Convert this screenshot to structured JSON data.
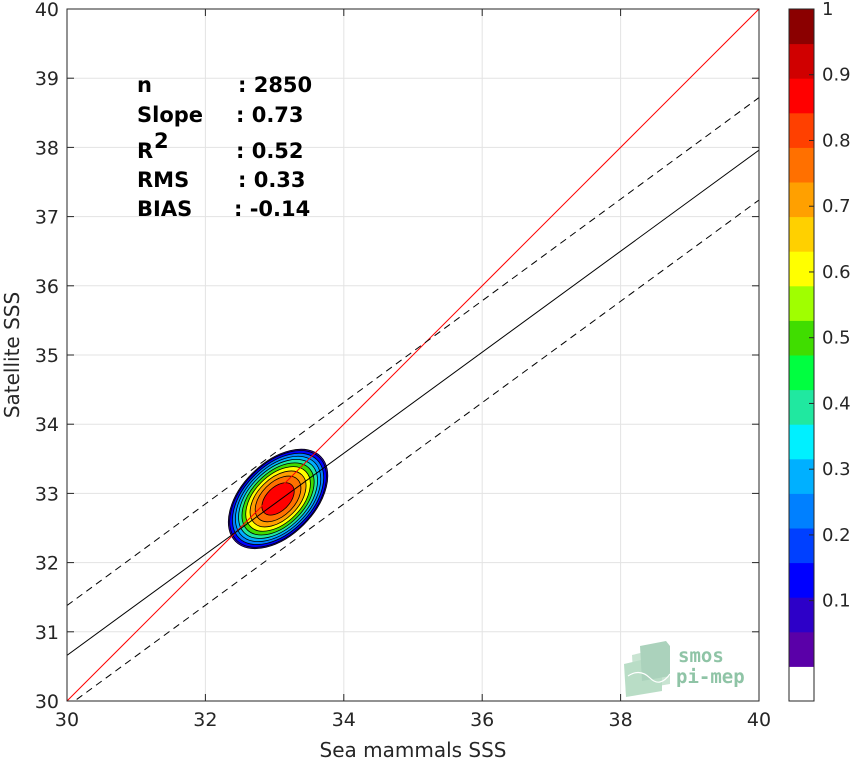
{
  "chart_data": {
    "type": "scatter",
    "subtype": "density-contour",
    "xlabel": "Sea mammals SSS",
    "ylabel": "Satellite SSS",
    "xlim": [
      30,
      40
    ],
    "ylim": [
      30,
      40
    ],
    "x_ticks": [
      "30",
      "32",
      "34",
      "36",
      "38",
      "40"
    ],
    "y_ticks": [
      "30",
      "31",
      "32",
      "33",
      "34",
      "35",
      "36",
      "37",
      "38",
      "39",
      "40"
    ],
    "grid": true,
    "stats": [
      {
        "key": "n",
        "sep": ": 2850"
      },
      {
        "key": "Slope",
        "sep": ": 0.73"
      },
      {
        "key": "R",
        "sup": "2",
        "sep": ": 0.52"
      },
      {
        "key": "RMS",
        "sep": ": 0.33"
      },
      {
        "key": "BIAS",
        "sep": ": -0.14"
      }
    ],
    "lines": [
      {
        "name": "identity",
        "color": "#ff0000",
        "style": "solid",
        "slope": 1,
        "intercept": 0
      },
      {
        "name": "regression",
        "color": "#000000",
        "style": "solid",
        "points": [
          [
            30,
            30.66
          ],
          [
            40,
            37.96
          ]
        ]
      },
      {
        "name": "regression-upper",
        "color": "#000000",
        "style": "dashed",
        "points": [
          [
            30,
            31.38
          ],
          [
            40,
            38.72
          ]
        ]
      },
      {
        "name": "regression-lower",
        "color": "#000000",
        "style": "dashed",
        "points": [
          [
            30,
            29.92
          ],
          [
            40,
            37.24
          ]
        ]
      }
    ],
    "density": {
      "center": [
        33.05,
        32.92
      ],
      "outer_rx": 0.85,
      "outer_ry": 0.87,
      "tilt_deg": 45,
      "levels": [
        0.05,
        0.1,
        0.2,
        0.3,
        0.4,
        0.5,
        0.6,
        0.7,
        0.8,
        0.9
      ]
    },
    "colorbar": {
      "ticks": [
        "0.1",
        "0.2",
        "0.3",
        "0.4",
        "0.5",
        "0.6",
        "0.7",
        "0.8",
        "0.9",
        "1"
      ],
      "colors": [
        "#ffffff",
        "#5a00a8",
        "#2d00c8",
        "#0000ff",
        "#0040ff",
        "#0080ff",
        "#00b0ff",
        "#00f0ff",
        "#20e8a0",
        "#00ff40",
        "#40dd00",
        "#a0ff00",
        "#ffff00",
        "#ffd000",
        "#ffa000",
        "#ff7000",
        "#ff4000",
        "#ff0000",
        "#d00000",
        "#8b0000"
      ]
    }
  },
  "logo": {
    "line1": "smos",
    "line2": "pi-mep"
  }
}
